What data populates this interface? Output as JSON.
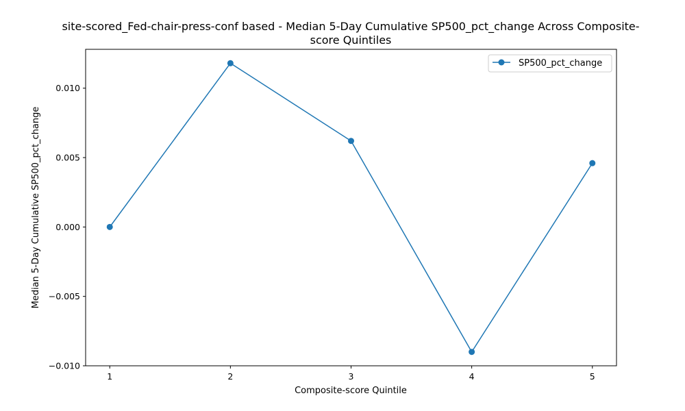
{
  "chart_data": {
    "type": "line",
    "title_lines": [
      "site-scored_Fed-chair-press-conf based - Median 5-Day Cumulative SP500_pct_change Across Composite-",
      "score Quintiles"
    ],
    "xlabel": "Composite-score Quintile",
    "ylabel": "Median 5-Day Cumulative SP500_pct_change",
    "x": [
      1,
      2,
      3,
      4,
      5
    ],
    "x_tick_labels": [
      "1",
      "2",
      "3",
      "4",
      "5"
    ],
    "y_ticks": [
      -0.01,
      -0.005,
      0.0,
      0.005,
      0.01
    ],
    "y_tick_labels": [
      "−0.010",
      "−0.005",
      "0.000",
      "0.005",
      "0.010"
    ],
    "xlim": [
      0.8,
      5.2
    ],
    "ylim": [
      -0.01,
      0.0128
    ],
    "grid": false,
    "legend_position": "upper right",
    "series": [
      {
        "name": "SP500_pct_change",
        "color": "#1f77b4",
        "marker": "circle",
        "values": [
          0.0,
          0.0118,
          0.0062,
          -0.009,
          0.0046
        ]
      }
    ]
  }
}
